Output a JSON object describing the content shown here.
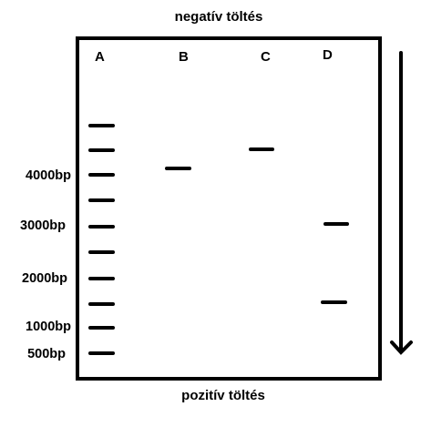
{
  "charge_top": "negatív töltés",
  "charge_bottom": "pozitív töltés",
  "lanes": [
    "A",
    "B",
    "C",
    "D"
  ],
  "ladder_labels": [
    "4000bp",
    "3000bp",
    "2000bp",
    "1000bp",
    "500bp"
  ],
  "colors": {
    "ink": "#000000",
    "background": "#ffffff"
  },
  "arrow_icon": "arrow-down-icon"
}
